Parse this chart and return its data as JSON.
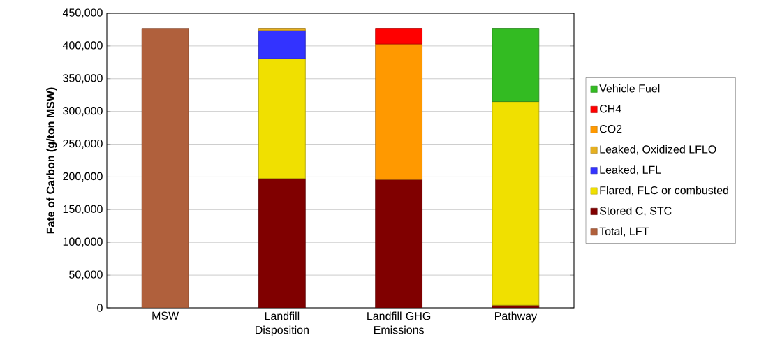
{
  "chart_data": {
    "type": "bar",
    "stacked": true,
    "ylabel": "Fate of Carbon (g/ton MSW)",
    "categories": [
      "MSW",
      "Landfill Disposition",
      "Landfill GHG Emissions",
      "Pathway"
    ],
    "series": [
      {
        "name": "Total, LFT",
        "color": "#b0603c",
        "values": [
          427000,
          null,
          null,
          null
        ]
      },
      {
        "name": "Stored C, STC",
        "color": "#800000",
        "values": [
          null,
          197500,
          196000,
          4000
        ]
      },
      {
        "name": "Flared, FLC or combusted",
        "color": "#f0e000",
        "values": [
          null,
          183000,
          null,
          311000
        ]
      },
      {
        "name": "Leaked, LFL",
        "color": "#3333ff",
        "values": [
          null,
          43000,
          null,
          null
        ]
      },
      {
        "name": "Leaked, Oxidized LFLO",
        "color": "#e6b020",
        "values": [
          null,
          3500,
          null,
          null
        ]
      },
      {
        "name": "CO2",
        "color": "#ff9900",
        "values": [
          null,
          null,
          207000,
          null
        ]
      },
      {
        "name": "CH4",
        "color": "#ff0000",
        "values": [
          null,
          null,
          24000,
          null
        ]
      },
      {
        "name": "Vehicle Fuel",
        "color": "#33bb22",
        "values": [
          null,
          null,
          null,
          112000
        ]
      }
    ],
    "ylim": [
      0,
      450000
    ],
    "yticks": [
      0,
      {
        "value": 50000,
        "label": "50,000"
      },
      {
        "value": 100000,
        "label": "100,000"
      },
      {
        "value": 150000,
        "label": "150,000"
      },
      {
        "value": 200000,
        "label": "200,000"
      },
      {
        "value": 250000,
        "label": "250,000"
      },
      {
        "value": 300000,
        "label": "300,000"
      },
      {
        "value": 350000,
        "label": "350,000"
      },
      {
        "value": 400000,
        "label": "400,000"
      },
      {
        "value": 450000,
        "label": "450,000"
      }
    ],
    "grid": "y",
    "legend": "right"
  }
}
